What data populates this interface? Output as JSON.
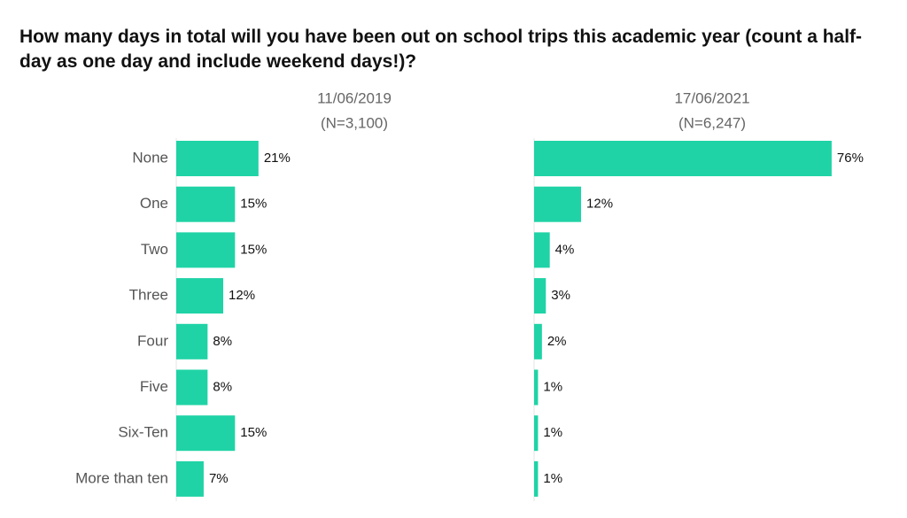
{
  "chart_data": {
    "type": "bar",
    "title": "How many days in total will you have been out on school trips this academic year (count a half-day as one day and include weekend days!)?",
    "categories": [
      "None",
      "One",
      "Two",
      "Three",
      "Four",
      "Five",
      "Six-Ten",
      "More than ten"
    ],
    "color": "#1fd3a6",
    "series": [
      {
        "name": "11/06/2019",
        "sample": "(N=3,100)",
        "values": [
          21,
          15,
          15,
          12,
          8,
          8,
          15,
          7
        ],
        "value_labels": [
          "21%",
          "15%",
          "15%",
          "12%",
          "8%",
          "8%",
          "15%",
          "7%"
        ]
      },
      {
        "name": "17/06/2021",
        "sample": "(N=6,247)",
        "values": [
          76,
          12,
          4,
          3,
          2,
          1,
          1,
          1
        ],
        "value_labels": [
          "76%",
          "12%",
          "4%",
          "3%",
          "2%",
          "1%",
          "1%",
          "1%"
        ]
      }
    ]
  }
}
